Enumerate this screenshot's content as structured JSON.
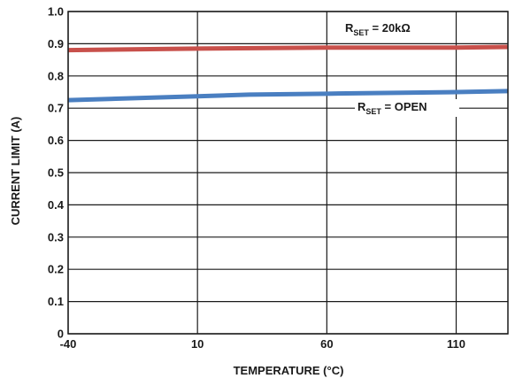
{
  "chart_data": {
    "type": "line",
    "xlabel": "TEMPERATURE (°C)",
    "ylabel": "CURRENT LIMIT (A)",
    "xlim": [
      -40,
      130
    ],
    "ylim": [
      0,
      1.0
    ],
    "x_ticks": [
      -40,
      10,
      60,
      110
    ],
    "x_tick_labels": [
      "-40",
      "10",
      "60",
      "110"
    ],
    "y_ticks": [
      0,
      0.1,
      0.2,
      0.3,
      0.4,
      0.5,
      0.6,
      0.7,
      0.8,
      0.9,
      1.0
    ],
    "y_tick_labels": [
      "0",
      "0.1",
      "0.2",
      "0.3",
      "0.4",
      "0.5",
      "0.6",
      "0.7",
      "0.8",
      "0.9",
      "1.0"
    ],
    "grid": true,
    "series": [
      {
        "name_main": "R",
        "name_sub": "SET",
        "name_rest": " = 20kΩ",
        "color": "#c8504b",
        "x": [
          -40,
          10,
          60,
          110,
          130
        ],
        "y": [
          0.88,
          0.885,
          0.888,
          0.888,
          0.89
        ]
      },
      {
        "name_main": "R",
        "name_sub": "SET",
        "name_rest": " = OPEN",
        "color": "#4a7fc1",
        "x": [
          -40,
          10,
          30,
          60,
          110,
          130
        ],
        "y": [
          0.725,
          0.737,
          0.742,
          0.745,
          0.75,
          0.753
        ]
      }
    ]
  }
}
